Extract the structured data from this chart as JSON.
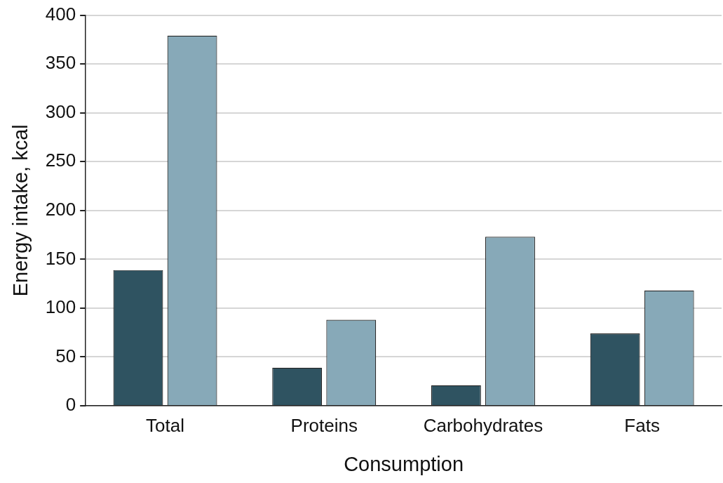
{
  "chart_data": {
    "type": "bar",
    "xlabel": "Consumption",
    "ylabel": "Energy intake, kcal",
    "categories": [
      "Total",
      "Proteins",
      "Carbohydrates",
      "Fats"
    ],
    "series": [
      {
        "color": "#2f5361",
        "values": [
          139,
          39,
          21,
          74
        ]
      },
      {
        "color": "#87a9b8",
        "values": [
          379,
          88,
          173,
          118
        ]
      }
    ],
    "ylim": [
      0,
      400
    ],
    "yticks": [
      0,
      50,
      100,
      150,
      200,
      250,
      300,
      350,
      400
    ],
    "grid": "y",
    "legend": false
  }
}
